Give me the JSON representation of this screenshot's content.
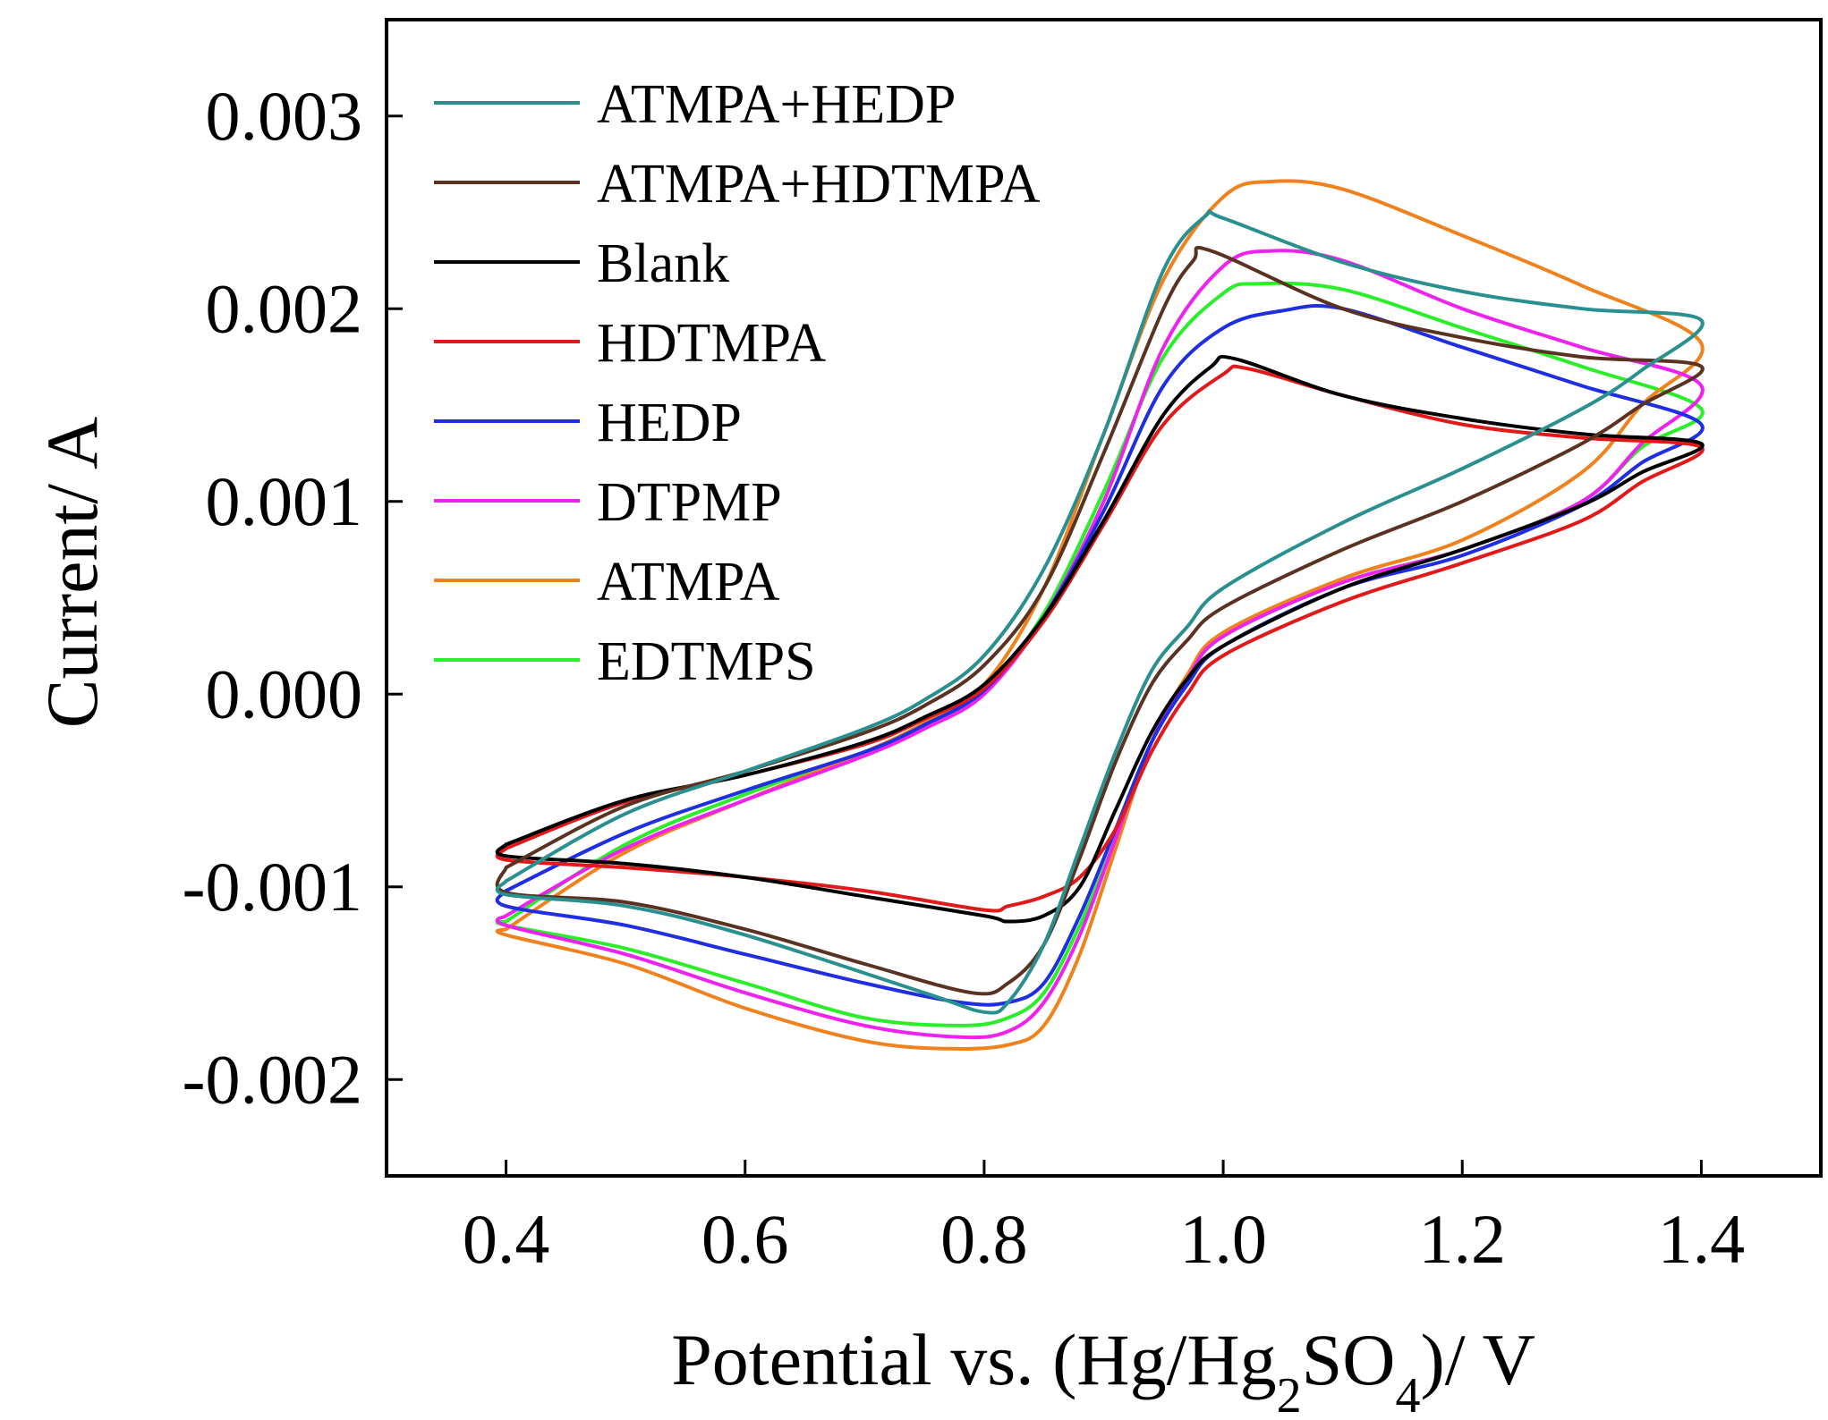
{
  "chart_data": {
    "type": "line",
    "title": "",
    "xlabel": {
      "prefix": "Potential vs. (Hg/Hg",
      "sub1": "2",
      "mid": "SO",
      "sub2": "4",
      "suffix": ")/ V"
    },
    "ylabel": "Current/ A",
    "xlim": [
      0.3,
      1.5
    ],
    "ylim": [
      -0.0025,
      0.0035
    ],
    "xticks": [
      0.4,
      0.6,
      0.8,
      1.0,
      1.2,
      1.4
    ],
    "xtick_labels": [
      "0.4",
      "0.6",
      "0.8",
      "1.0",
      "1.2",
      "1.4"
    ],
    "yticks": [
      0.003,
      0.002,
      0.001,
      0.0,
      -0.001,
      -0.002
    ],
    "ytick_labels": [
      "0.003",
      "0.002",
      "0.001",
      "0.000",
      "-0.001",
      "-0.002"
    ],
    "legend_position": "top-left",
    "series": [
      {
        "name": "ATMPA+HEDP",
        "color": "#2a8f8f",
        "x": [
          0.4,
          0.5,
          0.6,
          0.7,
          0.75,
          0.8,
          0.85,
          0.9,
          0.95,
          0.985,
          1.0,
          1.1,
          1.2,
          1.3,
          1.4,
          1.35,
          1.3,
          1.2,
          1.1,
          1.0,
          0.97,
          0.94,
          0.91,
          0.88,
          0.85,
          0.82,
          0.8,
          0.75,
          0.6,
          0.5,
          0.4,
          0.4
        ],
        "y": [
          -0.00097,
          -0.00062,
          -0.0004,
          -0.00018,
          -3e-05,
          0.0002,
          0.00065,
          0.00135,
          0.0022,
          0.00248,
          0.00247,
          0.00224,
          0.00209,
          0.002,
          0.00194,
          0.00168,
          0.00148,
          0.00117,
          0.00089,
          0.00055,
          0.00035,
          0.00012,
          -0.0003,
          -0.0008,
          -0.0013,
          -0.0016,
          -0.00165,
          -0.00155,
          -0.00125,
          -0.0011,
          -0.00104,
          -0.00097
        ]
      },
      {
        "name": "ATMPA+HDTMPA",
        "color": "#5a3222",
        "x": [
          0.4,
          0.5,
          0.6,
          0.7,
          0.75,
          0.8,
          0.85,
          0.9,
          0.95,
          0.975,
          0.99,
          1.1,
          1.2,
          1.3,
          1.4,
          1.35,
          1.3,
          1.2,
          1.1,
          1.0,
          0.97,
          0.94,
          0.91,
          0.88,
          0.85,
          0.82,
          0.79,
          0.7,
          0.6,
          0.5,
          0.4,
          0.4
        ],
        "y": [
          -0.0009,
          -0.00058,
          -0.0004,
          -0.0002,
          -6e-05,
          0.00015,
          0.00055,
          0.00125,
          0.002,
          0.00225,
          0.0023,
          0.002,
          0.00185,
          0.00175,
          0.0017,
          0.0015,
          0.0013,
          0.001,
          0.00075,
          0.00045,
          0.00028,
          5e-05,
          -0.00035,
          -0.00085,
          -0.0013,
          -0.0015,
          -0.00155,
          -0.0014,
          -0.00122,
          -0.00108,
          -0.00103,
          -0.0009
        ]
      },
      {
        "name": "Blank",
        "color": "#000000",
        "x": [
          0.4,
          0.5,
          0.6,
          0.7,
          0.75,
          0.8,
          0.85,
          0.9,
          0.95,
          0.99,
          1.01,
          1.1,
          1.2,
          1.3,
          1.4,
          1.35,
          1.3,
          1.2,
          1.1,
          1.0,
          0.97,
          0.94,
          0.91,
          0.88,
          0.85,
          0.82,
          0.8,
          0.7,
          0.6,
          0.5,
          0.4,
          0.4
        ],
        "y": [
          -0.00078,
          -0.00055,
          -0.00042,
          -0.00025,
          -0.00012,
          5e-05,
          0.0004,
          0.0009,
          0.00145,
          0.0017,
          0.00174,
          0.00155,
          0.00143,
          0.00135,
          0.0013,
          0.00115,
          0.00098,
          0.00075,
          0.00055,
          0.00025,
          8e-05,
          -0.0002,
          -0.0006,
          -0.001,
          -0.00115,
          -0.00118,
          -0.00115,
          -0.00105,
          -0.00095,
          -0.00088,
          -0.00084,
          -0.00078
        ]
      },
      {
        "name": "HDTMPA",
        "color": "#e01a1a",
        "x": [
          0.4,
          0.5,
          0.6,
          0.7,
          0.75,
          0.8,
          0.85,
          0.9,
          0.95,
          1.0,
          1.02,
          1.1,
          1.2,
          1.3,
          1.4,
          1.35,
          1.3,
          1.2,
          1.1,
          1.0,
          0.97,
          0.94,
          0.91,
          0.88,
          0.85,
          0.82,
          0.8,
          0.7,
          0.6,
          0.5,
          0.4,
          0.4
        ],
        "y": [
          -0.0008,
          -0.00056,
          -0.00042,
          -0.00026,
          -0.00013,
          3e-05,
          0.00038,
          0.00088,
          0.0014,
          0.00166,
          0.00169,
          0.00155,
          0.0014,
          0.00133,
          0.00128,
          0.0011,
          0.0009,
          0.00068,
          0.00048,
          0.0002,
          0.0,
          -0.0003,
          -0.0007,
          -0.00095,
          -0.00105,
          -0.0011,
          -0.00112,
          -0.00102,
          -0.00095,
          -0.0009,
          -0.00086,
          -0.0008
        ]
      },
      {
        "name": "HEDP",
        "color": "#1f2ee0",
        "x": [
          0.4,
          0.5,
          0.6,
          0.7,
          0.75,
          0.8,
          0.85,
          0.9,
          0.95,
          1.0,
          1.05,
          1.1,
          1.2,
          1.3,
          1.4,
          1.35,
          1.3,
          1.2,
          1.1,
          1.0,
          0.97,
          0.94,
          0.91,
          0.88,
          0.85,
          0.82,
          0.78,
          0.7,
          0.6,
          0.5,
          0.4,
          0.4
        ],
        "y": [
          -0.00102,
          -0.00072,
          -0.0005,
          -0.0003,
          -0.00016,
          2e-05,
          0.0004,
          0.00095,
          0.0016,
          0.0019,
          0.00199,
          0.002,
          0.0018,
          0.0016,
          0.0014,
          0.0012,
          0.00098,
          0.00072,
          0.00055,
          0.00025,
          5e-05,
          -0.00025,
          -0.0007,
          -0.00115,
          -0.0015,
          -0.0016,
          -0.0016,
          -0.0015,
          -0.00135,
          -0.0012,
          -0.0011,
          -0.00102
        ]
      },
      {
        "name": "DTPMP",
        "color": "#ee22ee",
        "x": [
          0.4,
          0.5,
          0.6,
          0.7,
          0.75,
          0.8,
          0.85,
          0.9,
          0.95,
          1.0,
          1.04,
          1.1,
          1.2,
          1.3,
          1.4,
          1.35,
          1.3,
          1.2,
          1.1,
          1.0,
          0.97,
          0.94,
          0.91,
          0.88,
          0.85,
          0.82,
          0.78,
          0.7,
          0.6,
          0.5,
          0.4,
          0.4
        ],
        "y": [
          -0.00115,
          -0.0008,
          -0.00055,
          -0.00032,
          -0.00018,
          0.0,
          0.0004,
          0.001,
          0.0018,
          0.00222,
          0.0023,
          0.00225,
          0.002,
          0.0018,
          0.0016,
          0.0013,
          0.001,
          0.00075,
          0.00058,
          0.0003,
          8e-05,
          -0.00025,
          -0.00075,
          -0.00125,
          -0.0016,
          -0.00175,
          -0.00178,
          -0.00172,
          -0.00155,
          -0.00135,
          -0.0012,
          -0.00115
        ]
      },
      {
        "name": "ATMPA",
        "color": "#f0821e",
        "x": [
          0.4,
          0.5,
          0.6,
          0.7,
          0.75,
          0.8,
          0.85,
          0.9,
          0.95,
          1.0,
          1.04,
          1.1,
          1.2,
          1.3,
          1.4,
          1.35,
          1.3,
          1.2,
          1.1,
          1.0,
          0.97,
          0.94,
          0.91,
          0.88,
          0.85,
          0.82,
          0.77,
          0.7,
          0.6,
          0.5,
          0.4,
          0.4
        ],
        "y": [
          -0.00122,
          -0.00082,
          -0.00055,
          -0.0003,
          -0.00015,
          5e-05,
          0.00055,
          0.00135,
          0.00215,
          0.00258,
          0.00266,
          0.00262,
          0.00238,
          0.00212,
          0.00182,
          0.0015,
          0.00115,
          0.0008,
          0.0006,
          0.00032,
          0.0001,
          -0.00025,
          -0.0008,
          -0.00135,
          -0.00172,
          -0.00182,
          -0.00184,
          -0.0018,
          -0.00163,
          -0.0014,
          -0.00125,
          -0.00122
        ]
      },
      {
        "name": "EDTMPS",
        "color": "#2aee2a",
        "x": [
          0.4,
          0.5,
          0.6,
          0.7,
          0.75,
          0.8,
          0.85,
          0.9,
          0.95,
          1.0,
          1.03,
          1.1,
          1.2,
          1.3,
          1.4,
          1.35,
          1.3,
          1.2,
          1.1,
          1.0,
          0.97,
          0.94,
          0.91,
          0.88,
          0.85,
          0.82,
          0.78,
          0.7,
          0.6,
          0.5,
          0.4,
          0.4
        ],
        "y": [
          -0.00118,
          -0.00078,
          -0.00052,
          -0.0003,
          -0.00016,
          2e-05,
          0.00042,
          0.00105,
          0.00175,
          0.00208,
          0.00213,
          0.0021,
          0.0019,
          0.0017,
          0.00148,
          0.00128,
          0.001,
          0.00075,
          0.00058,
          0.0003,
          8e-05,
          -0.00025,
          -0.00075,
          -0.0012,
          -0.00155,
          -0.00168,
          -0.00172,
          -0.00168,
          -0.0015,
          -0.00132,
          -0.0012,
          -0.00118
        ]
      }
    ]
  }
}
